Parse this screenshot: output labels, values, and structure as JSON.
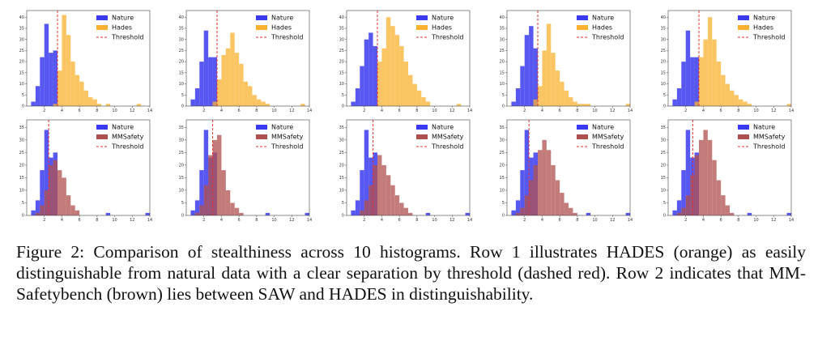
{
  "figure": {
    "legend_labels": {
      "nature": "Nature",
      "hades": "Hades",
      "mmsafety": "MMSafety",
      "threshold": "Threshold"
    },
    "colors": {
      "nature": "#3a3af0",
      "hades": "#fbb12f",
      "mmsafety": "#b0504e",
      "threshold": "#e8302a"
    }
  },
  "chart_data": [
    {
      "type": "bar",
      "row": 1,
      "col": 1,
      "xlim": [
        0,
        14
      ],
      "ylim": [
        0,
        43
      ],
      "x_ticks": [
        2,
        4,
        6,
        8,
        10,
        12,
        14
      ],
      "y_ticks": [
        0,
        5,
        10,
        15,
        20,
        25,
        30,
        35,
        40
      ],
      "bin_width": 0.5,
      "threshold": 3.5,
      "series": [
        {
          "name": "Nature",
          "bin_starts": [
            0.5,
            1,
            1.5,
            2,
            2.5,
            3
          ],
          "counts": [
            2,
            9,
            22,
            37,
            24,
            25
          ]
        },
        {
          "name": "Hades",
          "bin_starts": [
            3,
            3.5,
            4,
            4.5,
            5,
            5.5,
            6,
            6.5,
            7,
            7.5,
            8,
            8.5,
            9,
            12.5
          ],
          "counts": [
            1,
            16,
            41,
            32,
            20,
            14,
            11,
            7,
            4,
            3,
            1,
            0,
            1,
            1
          ]
        }
      ]
    },
    {
      "type": "bar",
      "row": 1,
      "col": 2,
      "xlim": [
        0,
        14
      ],
      "ylim": [
        0,
        43
      ],
      "x_ticks": [
        2,
        4,
        6,
        8,
        10,
        12,
        14
      ],
      "y_ticks": [
        0,
        5,
        10,
        15,
        20,
        25,
        30,
        35,
        40
      ],
      "bin_width": 0.5,
      "threshold": 3.5,
      "series": [
        {
          "name": "Nature",
          "bin_starts": [
            0.5,
            1,
            1.5,
            2,
            2.5,
            3
          ],
          "counts": [
            3,
            8,
            20,
            34,
            22,
            22
          ]
        },
        {
          "name": "Hades",
          "bin_starts": [
            3,
            3.5,
            4,
            4.5,
            5,
            5.5,
            6,
            6.5,
            7,
            7.5,
            8,
            8.5,
            9,
            13
          ],
          "counts": [
            2,
            12,
            23,
            26,
            33,
            24,
            19,
            11,
            9,
            5,
            3,
            2,
            1,
            1
          ]
        }
      ]
    },
    {
      "type": "bar",
      "row": 1,
      "col": 3,
      "xlim": [
        0,
        14
      ],
      "ylim": [
        0,
        43
      ],
      "x_ticks": [
        2,
        4,
        6,
        8,
        10,
        12,
        14
      ],
      "y_ticks": [
        0,
        5,
        10,
        15,
        20,
        25,
        30,
        35,
        40
      ],
      "bin_width": 0.5,
      "threshold": 3.5,
      "series": [
        {
          "name": "Nature",
          "bin_starts": [
            0.5,
            1,
            1.5,
            2,
            2.5,
            3
          ],
          "counts": [
            2,
            8,
            18,
            30,
            33,
            27
          ]
        },
        {
          "name": "Hades",
          "bin_starts": [
            3.5,
            4,
            4.5,
            5,
            5.5,
            6,
            6.5,
            7,
            7.5,
            8,
            8.5,
            9,
            12.5
          ],
          "counts": [
            20,
            26,
            40,
            36,
            32,
            27,
            20,
            14,
            10,
            7,
            4,
            2,
            1
          ]
        }
      ]
    },
    {
      "type": "bar",
      "row": 1,
      "col": 4,
      "xlim": [
        0,
        14
      ],
      "ylim": [
        0,
        43
      ],
      "x_ticks": [
        2,
        4,
        6,
        8,
        10,
        12,
        14
      ],
      "y_ticks": [
        0,
        5,
        10,
        15,
        20,
        25,
        30,
        35,
        40
      ],
      "bin_width": 0.5,
      "threshold": 3.5,
      "series": [
        {
          "name": "Nature",
          "bin_starts": [
            0.5,
            1,
            1.5,
            2,
            2.5,
            3
          ],
          "counts": [
            2,
            8,
            18,
            32,
            36,
            26
          ]
        },
        {
          "name": "Hades",
          "bin_starts": [
            3,
            3.5,
            4,
            4.5,
            5,
            5.5,
            6,
            6.5,
            7,
            7.5,
            8,
            8.5,
            9,
            13.5
          ],
          "counts": [
            3,
            9,
            25,
            37,
            24,
            16,
            11,
            7,
            4,
            2,
            1,
            1,
            1,
            1
          ]
        }
      ]
    },
    {
      "type": "bar",
      "row": 1,
      "col": 5,
      "xlim": [
        0,
        14
      ],
      "ylim": [
        0,
        43
      ],
      "x_ticks": [
        2,
        4,
        6,
        8,
        10,
        12,
        14
      ],
      "y_ticks": [
        0,
        5,
        10,
        15,
        20,
        25,
        30,
        35,
        40
      ],
      "bin_width": 0.5,
      "threshold": 3.5,
      "series": [
        {
          "name": "Nature",
          "bin_starts": [
            0.5,
            1,
            1.5,
            2,
            2.5,
            3
          ],
          "counts": [
            3,
            8,
            20,
            34,
            22,
            22
          ]
        },
        {
          "name": "Hades",
          "bin_starts": [
            3,
            3.5,
            4,
            4.5,
            5,
            5.5,
            6,
            6.5,
            7,
            7.5,
            8,
            8.5,
            9,
            13.5
          ],
          "counts": [
            2,
            22,
            30,
            40,
            30,
            20,
            14,
            10,
            7,
            5,
            3,
            2,
            1,
            1
          ]
        }
      ]
    },
    {
      "type": "bar",
      "row": 2,
      "col": 1,
      "xlim": [
        0,
        14
      ],
      "ylim": [
        0,
        38
      ],
      "x_ticks": [
        2,
        4,
        6,
        8,
        10,
        12,
        14
      ],
      "y_ticks": [
        0,
        5,
        10,
        15,
        20,
        25,
        30,
        35
      ],
      "bin_width": 0.5,
      "threshold": 2.5,
      "series": [
        {
          "name": "Nature",
          "bin_starts": [
            0.5,
            1,
            1.5,
            2,
            2.5,
            3,
            9,
            13.5
          ],
          "counts": [
            2,
            6,
            18,
            34,
            23,
            25,
            1,
            1
          ]
        },
        {
          "name": "MMSafety",
          "bin_starts": [
            1,
            1.5,
            2,
            2.5,
            3,
            3.5,
            4,
            4.5,
            5,
            5.5
          ],
          "counts": [
            1,
            4,
            10,
            20,
            22,
            18,
            15,
            8,
            4,
            2
          ]
        }
      ]
    },
    {
      "type": "bar",
      "row": 2,
      "col": 2,
      "xlim": [
        0,
        14
      ],
      "ylim": [
        0,
        38
      ],
      "x_ticks": [
        2,
        4,
        6,
        8,
        10,
        12,
        14
      ],
      "y_ticks": [
        0,
        5,
        10,
        15,
        20,
        25,
        30,
        35
      ],
      "bin_width": 0.5,
      "threshold": 3.0,
      "series": [
        {
          "name": "Nature",
          "bin_starts": [
            0.5,
            1,
            1.5,
            2,
            2.5,
            3,
            9,
            13.5
          ],
          "counts": [
            2,
            6,
            18,
            34,
            23,
            25,
            1,
            1
          ]
        },
        {
          "name": "MMSafety",
          "bin_starts": [
            1,
            1.5,
            2,
            2.5,
            3,
            3.5,
            4,
            4.5,
            5,
            5.5,
            6
          ],
          "counts": [
            1,
            4,
            12,
            24,
            30,
            32,
            18,
            10,
            5,
            3,
            1
          ]
        }
      ]
    },
    {
      "type": "bar",
      "row": 2,
      "col": 3,
      "xlim": [
        0,
        14
      ],
      "ylim": [
        0,
        38
      ],
      "x_ticks": [
        2,
        4,
        6,
        8,
        10,
        12,
        14
      ],
      "y_ticks": [
        0,
        5,
        10,
        15,
        20,
        25,
        30,
        35
      ],
      "bin_width": 0.5,
      "threshold": 3.0,
      "series": [
        {
          "name": "Nature",
          "bin_starts": [
            0.5,
            1,
            1.5,
            2,
            2.5,
            3,
            9,
            13.5
          ],
          "counts": [
            2,
            6,
            18,
            34,
            23,
            25,
            1,
            1
          ]
        },
        {
          "name": "MMSafety",
          "bin_starts": [
            1.5,
            2,
            2.5,
            3,
            3.5,
            4,
            4.5,
            5,
            5.5,
            6,
            6.5,
            7
          ],
          "counts": [
            2,
            6,
            12,
            20,
            24,
            20,
            16,
            12,
            8,
            5,
            3,
            1
          ]
        }
      ]
    },
    {
      "type": "bar",
      "row": 2,
      "col": 4,
      "xlim": [
        0,
        14
      ],
      "ylim": [
        0,
        38
      ],
      "x_ticks": [
        2,
        4,
        6,
        8,
        10,
        12,
        14
      ],
      "y_ticks": [
        0,
        5,
        10,
        15,
        20,
        25,
        30,
        35
      ],
      "bin_width": 0.5,
      "threshold": 2.5,
      "series": [
        {
          "name": "Nature",
          "bin_starts": [
            0.5,
            1,
            1.5,
            2,
            2.5,
            3,
            9,
            13.5
          ],
          "counts": [
            2,
            6,
            18,
            34,
            23,
            25,
            1,
            1
          ]
        },
        {
          "name": "MMSafety",
          "bin_starts": [
            1,
            1.5,
            2,
            2.5,
            3,
            3.5,
            4,
            4.5,
            5,
            5.5,
            6,
            6.5,
            7,
            7.5
          ],
          "counts": [
            1,
            3,
            8,
            14,
            20,
            26,
            30,
            26,
            20,
            14,
            9,
            5,
            3,
            1
          ]
        }
      ]
    },
    {
      "type": "bar",
      "row": 2,
      "col": 5,
      "xlim": [
        0,
        14
      ],
      "ylim": [
        0,
        38
      ],
      "x_ticks": [
        2,
        4,
        6,
        8,
        10,
        12,
        14
      ],
      "y_ticks": [
        0,
        5,
        10,
        15,
        20,
        25,
        30,
        35
      ],
      "bin_width": 0.5,
      "threshold": 2.8,
      "series": [
        {
          "name": "Nature",
          "bin_starts": [
            0.5,
            1,
            1.5,
            2,
            2.5,
            3,
            9,
            13.5
          ],
          "counts": [
            2,
            6,
            18,
            34,
            23,
            25,
            1,
            1
          ]
        },
        {
          "name": "MMSafety",
          "bin_starts": [
            1,
            1.5,
            2,
            2.5,
            3,
            3.5,
            4,
            4.5,
            5,
            5.5,
            6,
            6.5,
            7
          ],
          "counts": [
            1,
            3,
            8,
            16,
            24,
            30,
            34,
            30,
            22,
            14,
            8,
            4,
            1
          ]
        }
      ]
    }
  ],
  "caption": {
    "label": "Figure 2:",
    "text": "Comparison of stealthiness across 10 histograms. Row 1 illustrates HADES (orange) as easily distinguishable from natural data with a clear separation by threshold (dashed red). Row 2 indicates that MM-Safetybench (brown) lies between SAW and HADES in distinguishability."
  }
}
